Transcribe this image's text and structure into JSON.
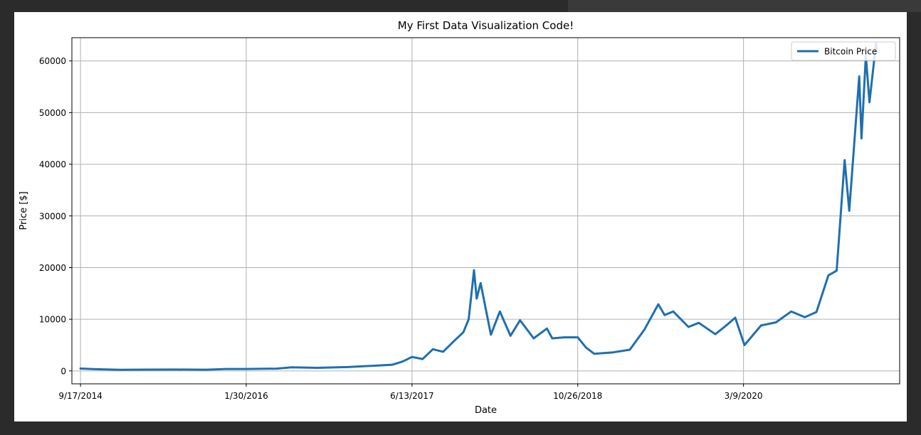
{
  "chart_data": {
    "type": "line",
    "title": "My First Data Visualization Code!",
    "xlabel": "Date",
    "ylabel": "Price [$]",
    "xlim": [
      "2014-08-22",
      "2021-06-23"
    ],
    "ylim": [
      -2500,
      64500
    ],
    "xticks": [
      {
        "date": "2014-09-17",
        "label": "9/17/2014"
      },
      {
        "date": "2016-01-30",
        "label": "1/30/2016"
      },
      {
        "date": "2017-06-13",
        "label": "6/13/2017"
      },
      {
        "date": "2018-10-26",
        "label": "10/26/2018"
      },
      {
        "date": "2020-03-09",
        "label": "3/9/2020"
      }
    ],
    "yticks": [
      0,
      10000,
      20000,
      30000,
      40000,
      50000,
      60000
    ],
    "grid": true,
    "legend": {
      "position": "top-right"
    },
    "line_color": "#1f6fb0",
    "series": [
      {
        "name": "Bitcoin Price",
        "points": [
          [
            "2014-09-17",
            460
          ],
          [
            "2014-11-01",
            330
          ],
          [
            "2015-01-15",
            210
          ],
          [
            "2015-04-01",
            250
          ],
          [
            "2015-07-01",
            260
          ],
          [
            "2015-10-01",
            240
          ],
          [
            "2015-12-01",
            380
          ],
          [
            "2016-01-30",
            380
          ],
          [
            "2016-05-01",
            450
          ],
          [
            "2016-06-15",
            700
          ],
          [
            "2016-09-01",
            600
          ],
          [
            "2016-12-01",
            750
          ],
          [
            "2017-02-15",
            1000
          ],
          [
            "2017-04-15",
            1200
          ],
          [
            "2017-05-15",
            1800
          ],
          [
            "2017-06-13",
            2700
          ],
          [
            "2017-07-15",
            2300
          ],
          [
            "2017-08-15",
            4200
          ],
          [
            "2017-09-15",
            3700
          ],
          [
            "2017-10-15",
            5600
          ],
          [
            "2017-11-15",
            7500
          ],
          [
            "2017-12-01",
            10000
          ],
          [
            "2017-12-17",
            19500
          ],
          [
            "2017-12-25",
            14000
          ],
          [
            "2018-01-06",
            17000
          ],
          [
            "2018-02-06",
            7000
          ],
          [
            "2018-03-05",
            11500
          ],
          [
            "2018-04-06",
            6800
          ],
          [
            "2018-05-05",
            9800
          ],
          [
            "2018-06-15",
            6300
          ],
          [
            "2018-07-25",
            8200
          ],
          [
            "2018-08-10",
            6300
          ],
          [
            "2018-09-15",
            6500
          ],
          [
            "2018-10-26",
            6500
          ],
          [
            "2018-11-20",
            4500
          ],
          [
            "2018-12-15",
            3300
          ],
          [
            "2019-02-10",
            3600
          ],
          [
            "2019-04-01",
            4100
          ],
          [
            "2019-05-15",
            8000
          ],
          [
            "2019-06-26",
            12900
          ],
          [
            "2019-07-15",
            10800
          ],
          [
            "2019-08-10",
            11500
          ],
          [
            "2019-09-25",
            8500
          ],
          [
            "2019-10-26",
            9300
          ],
          [
            "2019-12-15",
            7100
          ],
          [
            "2020-01-15",
            8700
          ],
          [
            "2020-02-13",
            10300
          ],
          [
            "2020-03-12",
            5000
          ],
          [
            "2020-05-01",
            8800
          ],
          [
            "2020-06-15",
            9400
          ],
          [
            "2020-07-31",
            11500
          ],
          [
            "2020-09-10",
            10400
          ],
          [
            "2020-10-15",
            11400
          ],
          [
            "2020-11-20",
            18500
          ],
          [
            "2020-12-15",
            19400
          ],
          [
            "2021-01-08",
            40800
          ],
          [
            "2021-01-22",
            31000
          ],
          [
            "2021-02-21",
            57000
          ],
          [
            "2021-02-28",
            45000
          ],
          [
            "2021-03-13",
            61000
          ],
          [
            "2021-03-24",
            52000
          ],
          [
            "2021-04-13",
            63500
          ],
          [
            "2021-04-15",
            61500
          ]
        ]
      }
    ]
  }
}
